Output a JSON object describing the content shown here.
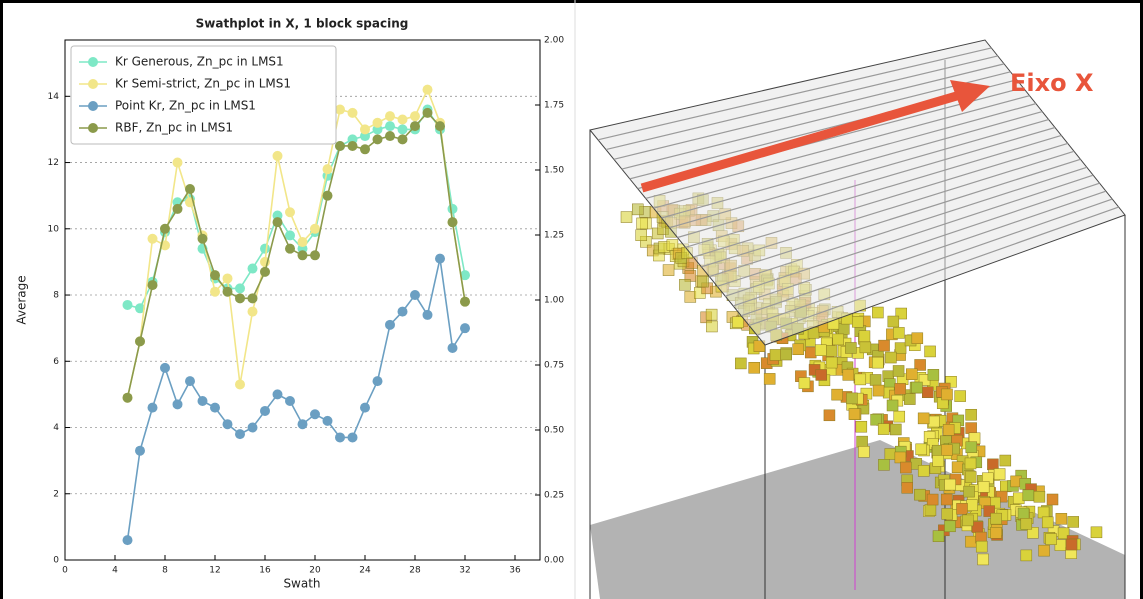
{
  "chart_data": {
    "type": "line",
    "title": "Swathplot in X, 1 block spacing",
    "x_label": "Swath",
    "y_label": "Average",
    "x": [
      5,
      6,
      7,
      8,
      9,
      10,
      11,
      12,
      13,
      14,
      15,
      16,
      17,
      18,
      19,
      20,
      21,
      22,
      23,
      24,
      25,
      26,
      27,
      28,
      29,
      30,
      31,
      32
    ],
    "series": [
      {
        "name": "Kr Generous, Zn_pc in LMS1",
        "color": "#7ee8c6",
        "values": [
          7.7,
          7.6,
          8.4,
          9.9,
          10.8,
          10.9,
          9.4,
          8.5,
          8.2,
          8.2,
          8.8,
          9.4,
          10.4,
          9.8,
          9.4,
          9.9,
          11.6,
          12.5,
          12.7,
          12.8,
          13.0,
          13.1,
          13.0,
          13.0,
          13.6,
          13.0,
          10.6,
          8.6
        ]
      },
      {
        "name": "Kr Semi-strict, Zn_pc in LMS1",
        "color": "#f2e689",
        "values": [
          4.9,
          6.6,
          9.7,
          9.5,
          12.0,
          10.8,
          9.8,
          8.1,
          8.5,
          5.3,
          7.5,
          9.0,
          12.2,
          10.5,
          9.6,
          10.0,
          11.8,
          13.6,
          13.5,
          13.0,
          13.2,
          13.4,
          13.3,
          13.4,
          14.2,
          13.2,
          10.2,
          7.8
        ]
      },
      {
        "name": "Point Kr, Zn_pc in LMS1",
        "color": "#6b9fc2",
        "values": [
          0.6,
          3.3,
          4.6,
          5.8,
          4.7,
          5.4,
          4.8,
          4.6,
          4.1,
          3.8,
          4.0,
          4.5,
          5.0,
          4.8,
          4.1,
          4.4,
          4.2,
          3.7,
          3.7,
          4.6,
          5.4,
          7.1,
          7.5,
          8.0,
          7.4,
          9.1,
          6.4,
          7.0
        ]
      },
      {
        "name": "RBF, Zn_pc in LMS1",
        "color": "#8b9a4b",
        "values": [
          4.9,
          6.6,
          8.3,
          10.0,
          10.6,
          11.2,
          9.7,
          8.6,
          8.1,
          7.9,
          7.9,
          8.7,
          10.2,
          9.4,
          9.2,
          9.2,
          11.0,
          12.5,
          12.5,
          12.4,
          12.7,
          12.8,
          12.7,
          13.1,
          13.5,
          13.1,
          10.2,
          7.8
        ]
      }
    ],
    "xlim": [
      0,
      38
    ],
    "xticks": [
      0,
      4,
      8,
      12,
      16,
      20,
      24,
      28,
      32,
      36
    ],
    "ylim": [
      0,
      15.7
    ],
    "yticks": [
      0,
      2,
      4,
      6,
      8,
      10,
      12,
      14
    ],
    "y2lim": [
      0,
      2
    ],
    "y2ticks": [
      {
        "value": 0,
        "label": "0.00"
      },
      {
        "value": 0.25,
        "label": "0.25"
      },
      {
        "value": 0.5,
        "label": "0.50"
      },
      {
        "value": 0.75,
        "label": "0.75"
      },
      {
        "value": 1,
        "label": "1.00"
      },
      {
        "value": 1.25,
        "label": "1.25"
      },
      {
        "value": 1.5,
        "label": "1.50"
      },
      {
        "value": 1.75,
        "label": "1.75"
      },
      {
        "value": 2,
        "label": "2.00"
      }
    ],
    "grid": true,
    "legend": "upper left"
  },
  "image_panel": {
    "label": "Eixo X"
  }
}
